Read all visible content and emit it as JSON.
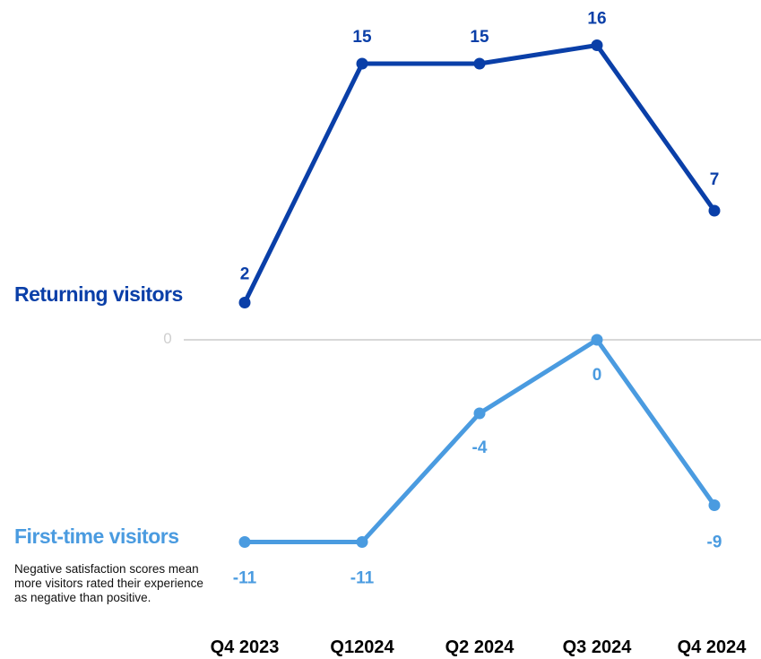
{
  "chart_data": {
    "type": "line",
    "categories": [
      "Q4 2023",
      "Q12024",
      "Q2 2024",
      "Q3 2024",
      "Q4 2024"
    ],
    "series": [
      {
        "name": "Returning visitors",
        "values": [
          2,
          15,
          15,
          16,
          7
        ],
        "data_labels": [
          "2",
          "15",
          "15",
          "16",
          "7"
        ],
        "color": "#0a3fa8"
      },
      {
        "name": "First-time visitors",
        "values": [
          -11,
          -11,
          -4,
          0,
          -9
        ],
        "data_labels": [
          "-11",
          "-11",
          "-4",
          "0",
          "-9"
        ],
        "color": "#4a9be0"
      }
    ],
    "zero_line_label": "0",
    "note": "Negative satisfaction scores mean more visitors rated their experience as negative than positive.",
    "xlabel": "",
    "ylabel": "",
    "grid": false,
    "legend": "inline-left",
    "colors": {
      "returning": "#0a3fa8",
      "first_time": "#4a9be0",
      "zero_line": "#d8d8d8",
      "zero_label": "#cfcfcf",
      "tick_label": "#000000"
    }
  }
}
